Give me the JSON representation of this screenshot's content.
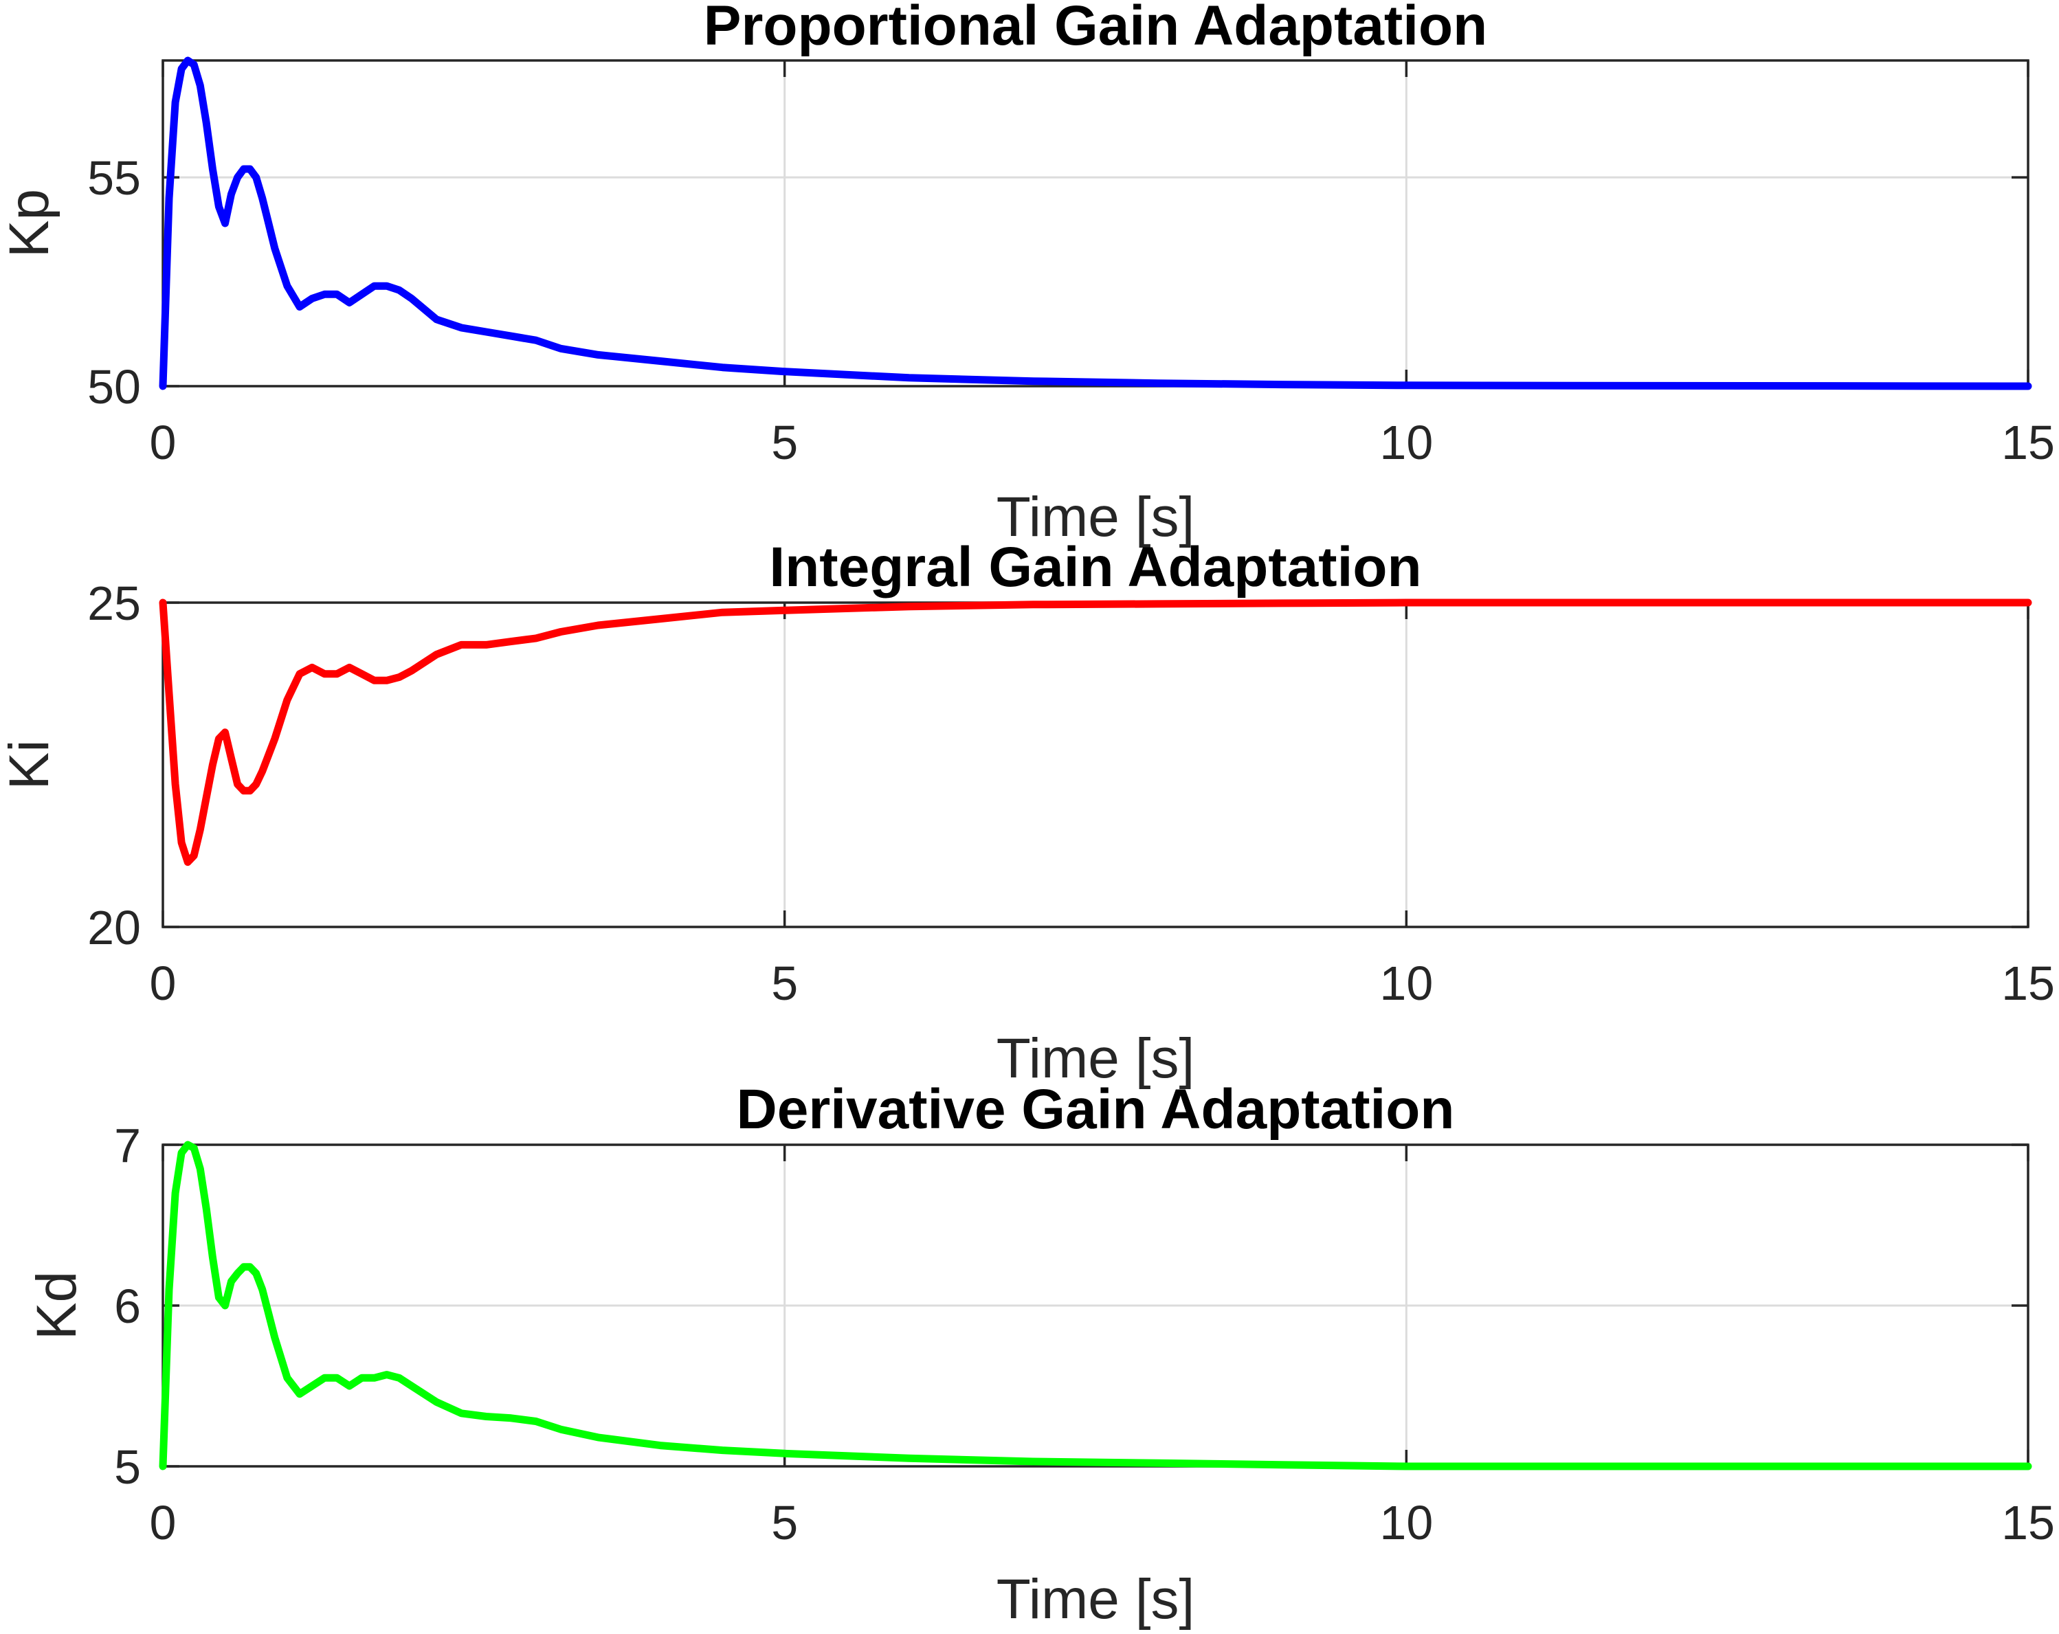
{
  "chart_data": [
    {
      "type": "line",
      "title": "Proportional Gain Adaptation",
      "xlabel": "Time [s]",
      "ylabel": "Kp",
      "xlim": [
        0,
        15
      ],
      "ylim": [
        50,
        57.8
      ],
      "xticks": [
        0,
        5,
        10,
        15
      ],
      "yticks": [
        50,
        55
      ],
      "xtick_labels": [
        "0",
        "5",
        "10",
        "15"
      ],
      "ytick_labels": [
        "50",
        "55"
      ],
      "grid": true,
      "color": "#0000ff",
      "series": [
        {
          "x": [
            0,
            0.05,
            0.1,
            0.15,
            0.2,
            0.25,
            0.3,
            0.35,
            0.4,
            0.45,
            0.5,
            0.55,
            0.6,
            0.65,
            0.7,
            0.75,
            0.8,
            0.85,
            0.9,
            1.0,
            1.1,
            1.2,
            1.3,
            1.4,
            1.5,
            1.6,
            1.7,
            1.8,
            1.9,
            2.0,
            2.2,
            2.4,
            2.6,
            2.8,
            3.0,
            3.2,
            3.5,
            4.0,
            4.5,
            5.0,
            6.0,
            7.0,
            8.0,
            9.0,
            10.0,
            12.0,
            15.0
          ],
          "y": [
            50.0,
            54.5,
            56.8,
            57.6,
            57.8,
            57.7,
            57.2,
            56.3,
            55.2,
            54.3,
            53.9,
            54.6,
            55.0,
            55.2,
            55.2,
            55.0,
            54.5,
            53.9,
            53.3,
            52.4,
            51.9,
            52.1,
            52.2,
            52.2,
            52.0,
            52.2,
            52.4,
            52.4,
            52.3,
            52.1,
            51.6,
            51.4,
            51.3,
            51.2,
            51.1,
            50.9,
            50.75,
            50.6,
            50.45,
            50.35,
            50.2,
            50.12,
            50.07,
            50.04,
            50.02,
            50.01,
            50.0
          ]
        }
      ]
    },
    {
      "type": "line",
      "title": "Integral Gain Adaptation",
      "xlabel": "Time [s]",
      "ylabel": "Ki",
      "xlim": [
        0,
        15
      ],
      "ylim": [
        20,
        25
      ],
      "xticks": [
        0,
        5,
        10,
        15
      ],
      "yticks": [
        20,
        25
      ],
      "xtick_labels": [
        "0",
        "5",
        "10",
        "15"
      ],
      "ytick_labels": [
        "20",
        "25"
      ],
      "grid": true,
      "color": "#ff0000",
      "series": [
        {
          "x": [
            0,
            0.05,
            0.1,
            0.15,
            0.2,
            0.25,
            0.3,
            0.35,
            0.4,
            0.45,
            0.5,
            0.55,
            0.6,
            0.65,
            0.7,
            0.75,
            0.8,
            0.9,
            1.0,
            1.1,
            1.2,
            1.3,
            1.4,
            1.5,
            1.6,
            1.7,
            1.8,
            1.9,
            2.0,
            2.2,
            2.4,
            2.6,
            2.8,
            3.0,
            3.2,
            3.5,
            4.0,
            4.5,
            5.0,
            6.0,
            7.0,
            8.0,
            9.0,
            10.0,
            12.0,
            15.0
          ],
          "y": [
            25.0,
            23.6,
            22.2,
            21.3,
            21.0,
            21.1,
            21.5,
            22.0,
            22.5,
            22.9,
            23.0,
            22.6,
            22.2,
            22.1,
            22.1,
            22.2,
            22.4,
            22.9,
            23.5,
            23.9,
            24.0,
            23.9,
            23.9,
            24.0,
            23.9,
            23.8,
            23.8,
            23.85,
            23.95,
            24.2,
            24.35,
            24.35,
            24.4,
            24.45,
            24.55,
            24.65,
            24.75,
            24.85,
            24.88,
            24.94,
            24.97,
            24.98,
            24.99,
            25.0,
            25.0,
            25.0
          ]
        }
      ]
    },
    {
      "type": "line",
      "title": "Derivative Gain Adaptation",
      "xlabel": "Time [s]",
      "ylabel": "Kd",
      "xlim": [
        0,
        15
      ],
      "ylim": [
        5,
        7
      ],
      "xticks": [
        0,
        5,
        10,
        15
      ],
      "yticks": [
        5,
        6,
        7
      ],
      "xtick_labels": [
        "0",
        "5",
        "10",
        "15"
      ],
      "ytick_labels": [
        "5",
        "6",
        "7"
      ],
      "grid": true,
      "color": "#00ff00",
      "series": [
        {
          "x": [
            0,
            0.05,
            0.1,
            0.15,
            0.2,
            0.25,
            0.3,
            0.35,
            0.4,
            0.45,
            0.5,
            0.55,
            0.6,
            0.65,
            0.7,
            0.75,
            0.8,
            0.85,
            0.9,
            1.0,
            1.1,
            1.2,
            1.3,
            1.4,
            1.5,
            1.6,
            1.7,
            1.8,
            1.9,
            2.0,
            2.2,
            2.4,
            2.6,
            2.8,
            3.0,
            3.2,
            3.5,
            4.0,
            4.5,
            5.0,
            6.0,
            7.0,
            8.0,
            9.0,
            10.0,
            12.0,
            15.0
          ],
          "y": [
            5.0,
            6.1,
            6.7,
            6.95,
            7.0,
            6.98,
            6.85,
            6.6,
            6.3,
            6.05,
            6.0,
            6.15,
            6.2,
            6.24,
            6.24,
            6.2,
            6.1,
            5.95,
            5.8,
            5.55,
            5.45,
            5.5,
            5.55,
            5.55,
            5.5,
            5.55,
            5.55,
            5.57,
            5.55,
            5.5,
            5.4,
            5.33,
            5.31,
            5.3,
            5.28,
            5.23,
            5.18,
            5.13,
            5.1,
            5.08,
            5.05,
            5.03,
            5.02,
            5.01,
            5.0,
            5.0,
            5.0
          ]
        }
      ]
    }
  ]
}
